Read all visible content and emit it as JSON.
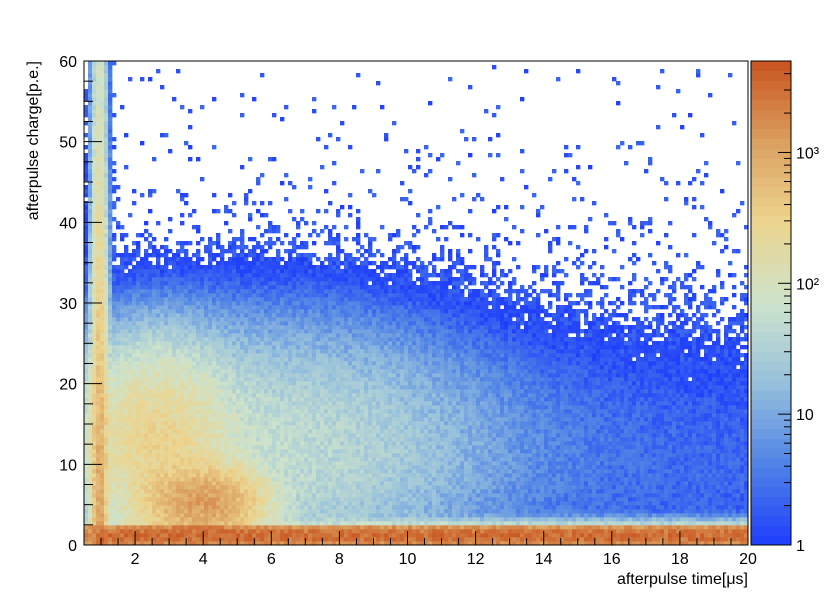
{
  "chart_data": {
    "type": "heatmap",
    "title": "",
    "xlabel": "afterpulse time[μs]",
    "ylabel": "afterpulse charge[p.e.]",
    "xlim": [
      0.5,
      20
    ],
    "ylim": [
      0,
      60
    ],
    "x_ticks": [
      2,
      4,
      6,
      8,
      10,
      12,
      14,
      16,
      18,
      20
    ],
    "y_ticks": [
      0,
      10,
      20,
      30,
      40,
      50,
      60
    ],
    "z_scale": "log",
    "z_range": [
      1,
      5000
    ],
    "z_ticks": [
      {
        "value": 1,
        "label": "1"
      },
      {
        "value": 10,
        "label": "10"
      },
      {
        "value": 100,
        "label": "10²"
      },
      {
        "value": 1000,
        "label": "10³"
      }
    ],
    "colormap": [
      "#1f3dfb",
      "#4f82e6",
      "#96c0dc",
      "#cde3cc",
      "#ecd58f",
      "#dba060",
      "#c8531e"
    ],
    "features": [
      {
        "region": "charge 0-2.5 p.e., all times",
        "approx_counts": "1000-5000"
      },
      {
        "region": "time ~0.9 μs vertical band, charge 0-40 p.e.",
        "approx_counts": "100-2000"
      },
      {
        "region": "time 3-5 μs, charge 2-9 p.e.",
        "approx_counts": "~1000"
      },
      {
        "region": "time 1.5-4 μs, charge 10-20 p.e.",
        "approx_counts": "~100-300"
      },
      {
        "region": "time 8-20 μs, charge 5-25 p.e.",
        "approx_counts": "1-20"
      }
    ],
    "grid": false,
    "legend": "color bar on right"
  }
}
